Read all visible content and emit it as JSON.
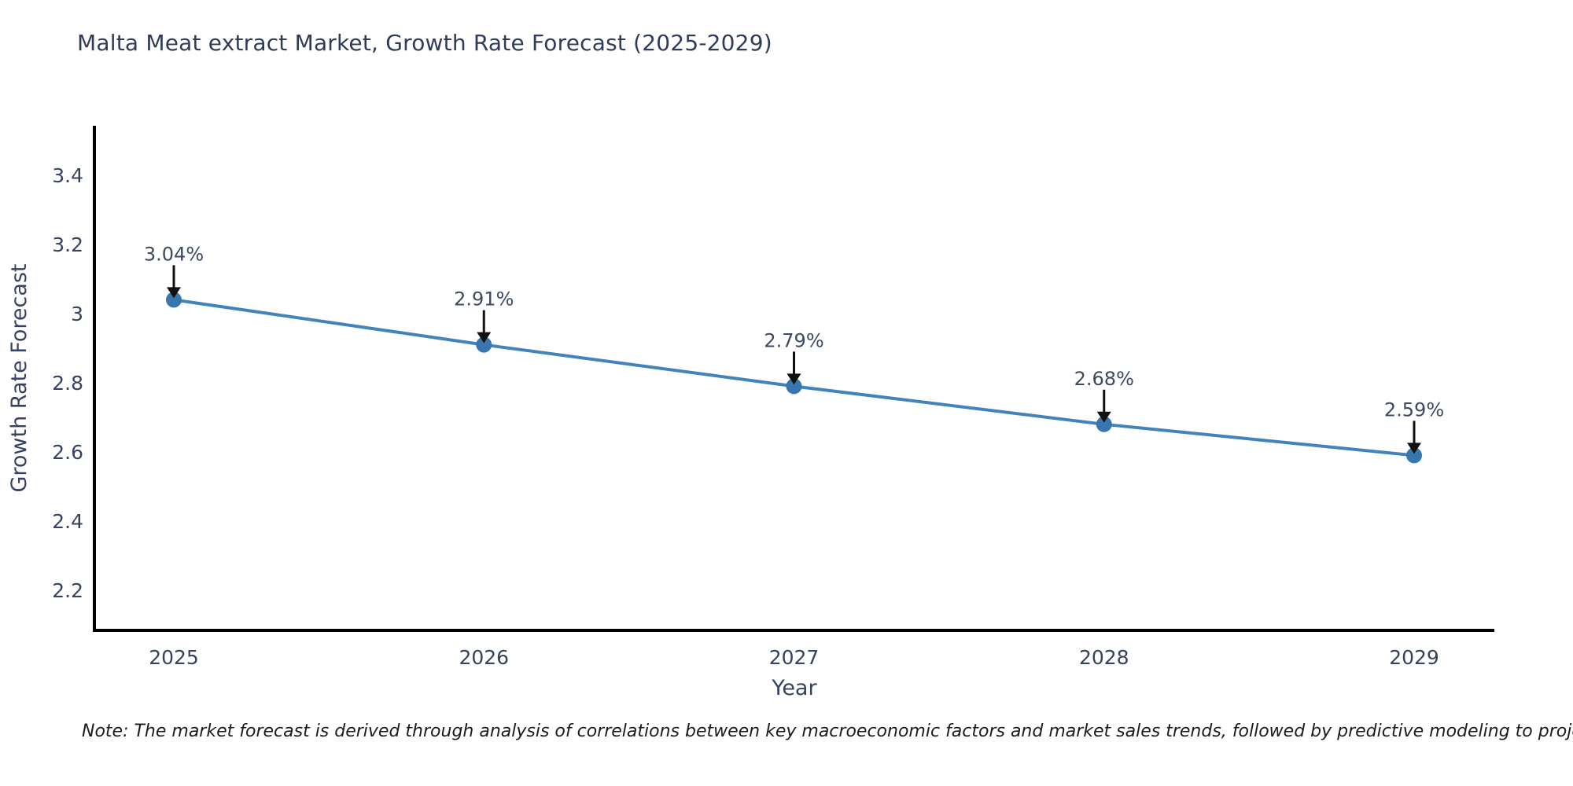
{
  "title": "Malta Meat extract Market, Growth Rate Forecast (2025-2029)",
  "note": "Note: The market forecast is derived through analysis of correlations between key macroeconomic factors and market sales trends, followed by predictive modeling to project future sales",
  "chart_data": {
    "type": "line",
    "title": "Malta Meat extract Market, Growth Rate Forecast (2025-2029)",
    "xlabel": "Year",
    "ylabel": "Growth Rate Forecast",
    "categories": [
      2025,
      2026,
      2027,
      2028,
      2029
    ],
    "series": [
      {
        "name": "Growth Rate Forecast",
        "values": [
          3.04,
          2.91,
          2.79,
          2.68,
          2.59
        ]
      }
    ],
    "point_labels": [
      "3.04%",
      "2.91%",
      "2.79%",
      "2.68%",
      "2.59%"
    ],
    "yticks": [
      3.4,
      3.2,
      3,
      2.8,
      2.6,
      2.4,
      2.2
    ],
    "ylim": [
      2.08,
      3.55
    ],
    "grid": false,
    "legend": false,
    "colors": {
      "line": "#4183bb",
      "marker": "#3a76ae",
      "arrow": "#111111",
      "axis": "#000000",
      "tick_label": "#36425f",
      "annotation_label": "#3c4961"
    }
  }
}
